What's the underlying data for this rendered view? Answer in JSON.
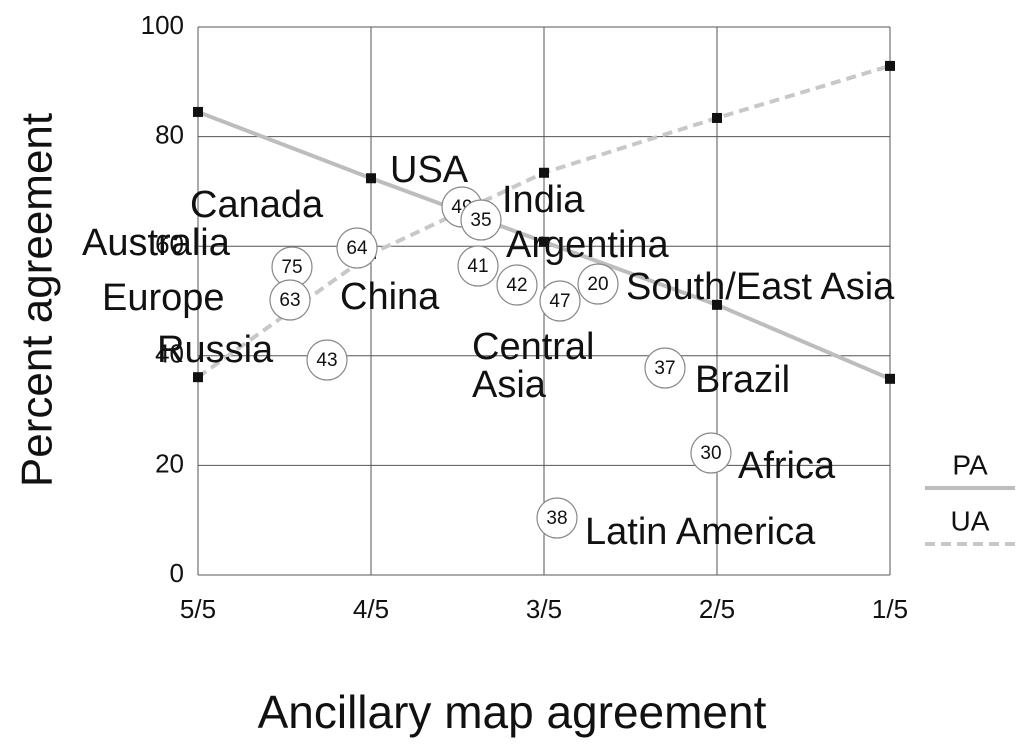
{
  "chart_data": {
    "type": "line",
    "x_label": "Ancillary map agreement",
    "y_label": "Percent agreement",
    "categories": [
      "5/5",
      "4/5",
      "3/5",
      "2/5",
      "1/5"
    ],
    "ylim": [
      0,
      100
    ],
    "yticks": [
      0,
      20,
      40,
      60,
      80,
      100
    ],
    "grid": true,
    "legend": "right",
    "series": [
      {
        "name": "PA",
        "color": "#bdbdbd",
        "dash": false,
        "values": [
          84.5,
          72.4,
          60.8,
          49.3,
          35.8
        ]
      },
      {
        "name": "UA",
        "color": "#c8c8c8",
        "dash": true,
        "values": [
          36.1,
          58.6,
          73.4,
          83.4,
          92.9
        ]
      }
    ],
    "regions": [
      {
        "label": "Australia",
        "count": 75
      },
      {
        "label": "Europe",
        "count": 63
      },
      {
        "label": "Russia",
        "count": 43
      },
      {
        "label": "Canada",
        "count": 64
      },
      {
        "label": "USA",
        "count": 49
      },
      {
        "label": "India",
        "count": 35
      },
      {
        "label": "China",
        "count": 41
      },
      {
        "label": "Argentina",
        "count": 42
      },
      {
        "label": "Central Asia",
        "count": 47
      },
      {
        "label": "South/East Asia",
        "count": 20
      },
      {
        "label": "Brazil",
        "count": 37
      },
      {
        "label": "Africa",
        "count": 30
      },
      {
        "label": "Latin America",
        "count": 38
      }
    ]
  }
}
